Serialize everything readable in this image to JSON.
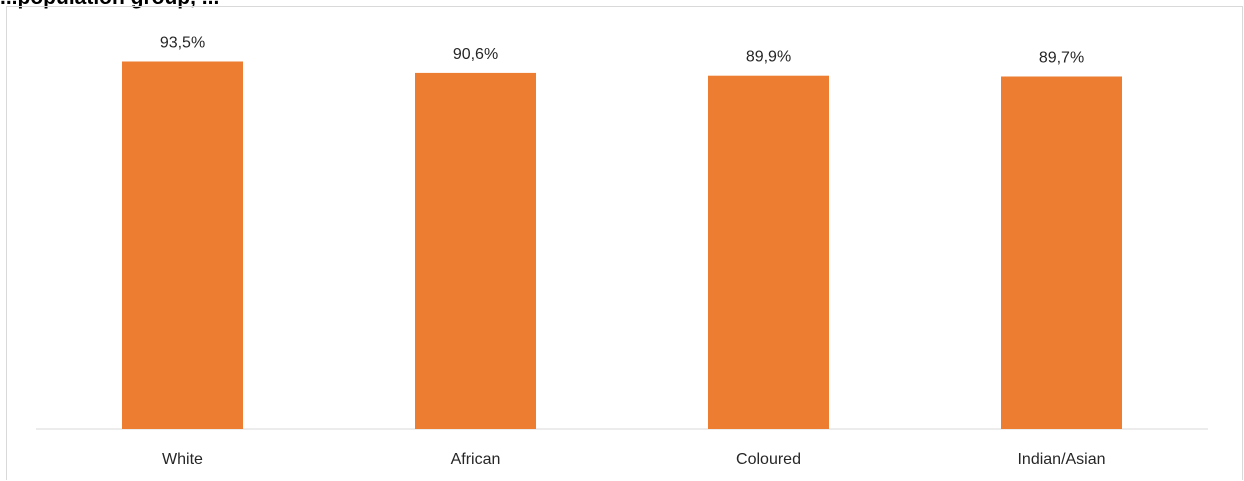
{
  "chart_data": {
    "type": "bar",
    "title": "...population group, ...",
    "xlabel": "",
    "ylabel": "",
    "categories": [
      "White",
      "African",
      "Coloured",
      "Indian/Asian"
    ],
    "values": [
      93.5,
      90.6,
      89.9,
      89.7
    ],
    "data_labels": [
      "93,5%",
      "90,6%",
      "89,9%",
      "89,7%"
    ],
    "ylim": [
      0,
      100
    ],
    "grid": false,
    "legend": "none",
    "bar_color": "#ED7D31"
  }
}
